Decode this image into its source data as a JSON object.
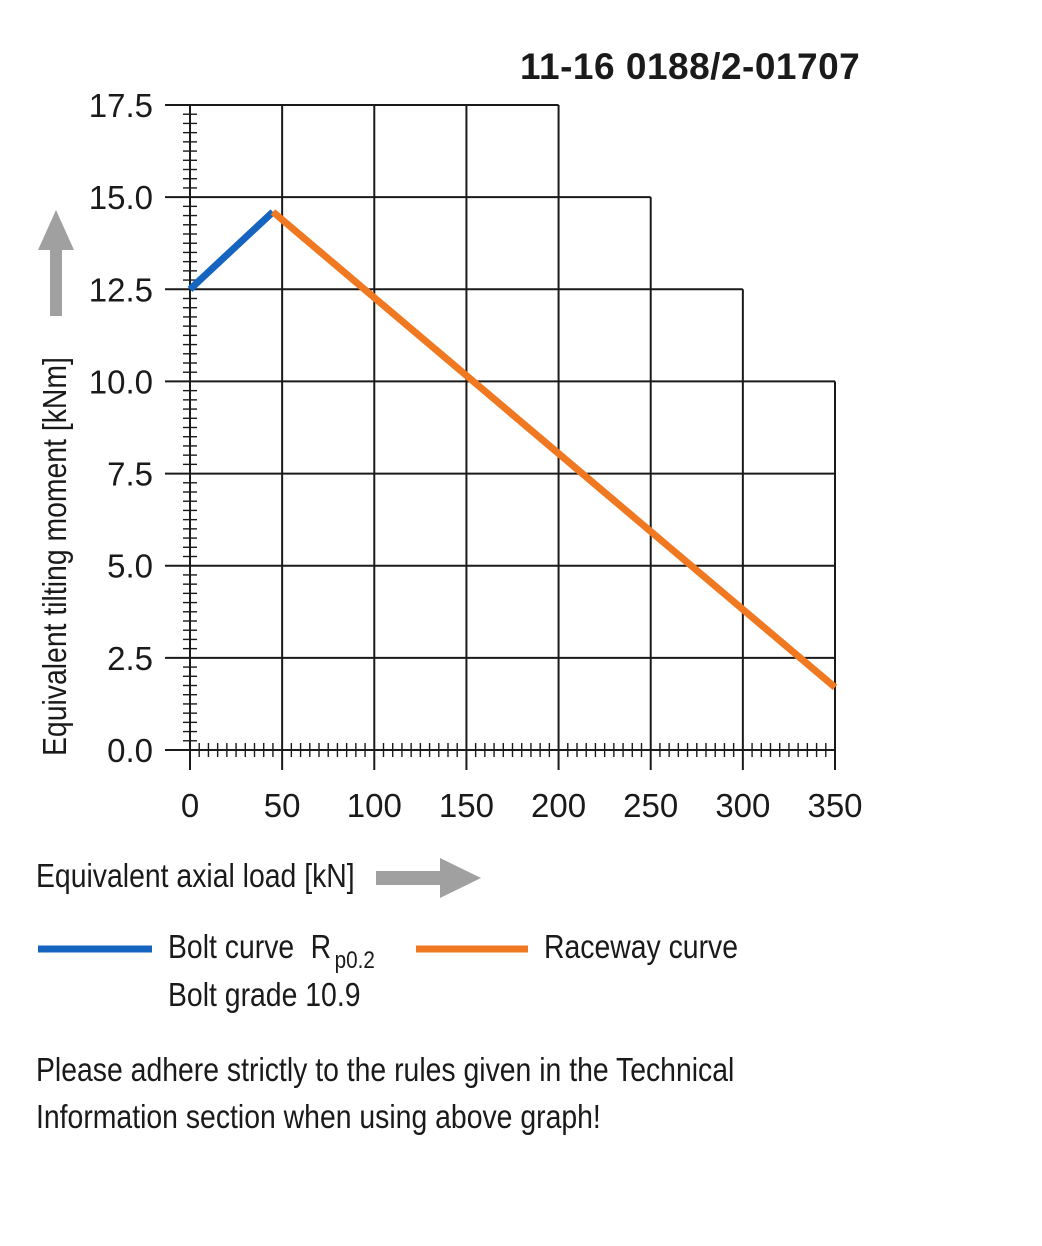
{
  "chart_data": {
    "type": "line",
    "title": "11-16 0188/2-01707",
    "xlabel": "Equivalent axial load [kN]",
    "ylabel": "Equivalent tilting moment [kNm]",
    "xlim": [
      0,
      350
    ],
    "ylim": [
      0,
      17.5
    ],
    "x_ticks": [
      "0",
      "50",
      "100",
      "150",
      "200",
      "250",
      "300",
      "350"
    ],
    "y_ticks": [
      "0.0",
      "2.5",
      "5.0",
      "7.5",
      "10.0",
      "12.5",
      "15.0",
      "17.5"
    ],
    "grid": true,
    "legend_position": "bottom",
    "series": [
      {
        "name": "Bolt curve",
        "name_sub": "R",
        "name_subscript": "p0.2",
        "name_line2": "Bolt grade 10.9",
        "color": "#1565c0",
        "x": [
          0,
          45
        ],
        "y": [
          12.5,
          14.6
        ]
      },
      {
        "name": "Raceway curve",
        "color": "#f07820",
        "x": [
          45,
          350
        ],
        "y": [
          14.6,
          1.7
        ]
      }
    ]
  },
  "note_lines": [
    "Please adhere strictly to the rules given in the Technical",
    "Information section when using above graph!"
  ],
  "colors": {
    "arrow": "#a0a0a0",
    "grid": "#1a1a1a"
  }
}
